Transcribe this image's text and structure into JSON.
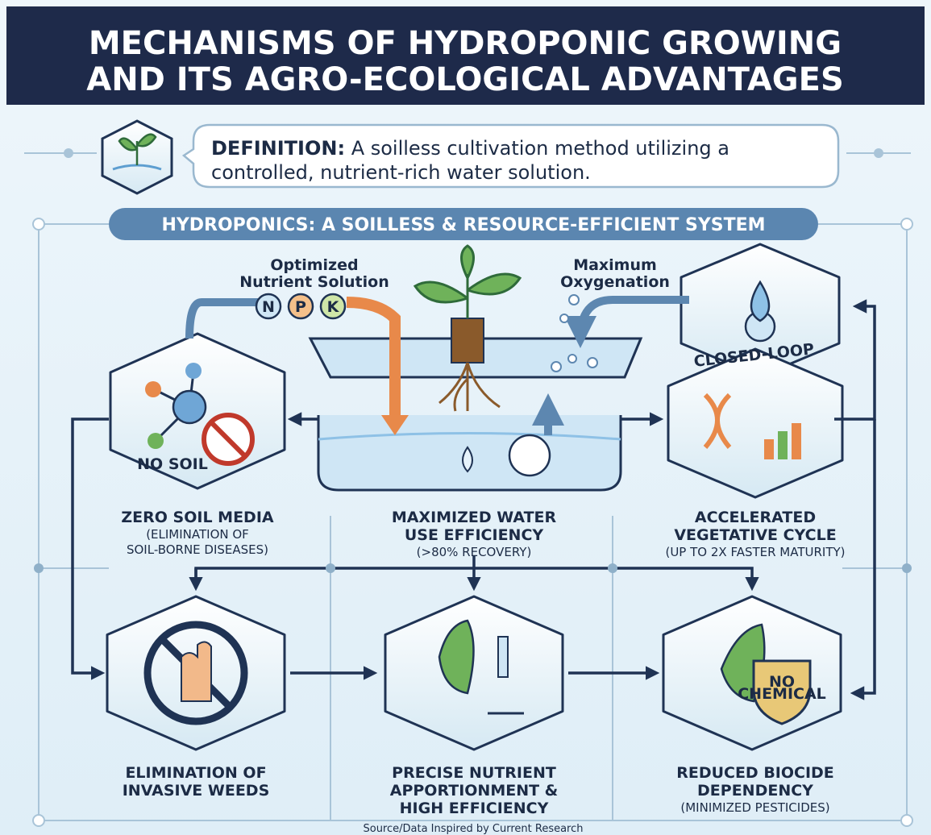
{
  "header": {
    "title_lines": [
      "MECHANISMS OF HYDROPONIC GROWING",
      "AND ITS AGRO-ECOLOGICAL ADVANTAGES"
    ]
  },
  "definition": {
    "label": "DEFINITION:",
    "text_lines": [
      "A soilless cultivation method utilizing a",
      "controlled, nutrient-rich water solution."
    ]
  },
  "banner": "HYDROPONICS: A SOILLESS & RESOURCE-EFFICIENT SYSTEM",
  "process": {
    "nutrient_lines": [
      "Optimized",
      "Nutrient Solution"
    ],
    "nutrients": [
      "N",
      "P",
      "K"
    ],
    "oxygen_lines": [
      "Maximum",
      "Oxygenation"
    ],
    "loop": "CLOSED-LOOP",
    "soil_badge": "NO SOIL",
    "shield_lines": [
      "NO",
      "CHEMICAL"
    ]
  },
  "nodes": [
    {
      "title_lines": [
        "ZERO SOIL MEDIA"
      ],
      "note_lines": [
        "(ELIMINATION OF",
        "SOIL-BORNE DISEASES)"
      ]
    },
    {
      "title_lines": [
        "MAXIMIZED WATER",
        "USE EFFICIENCY"
      ],
      "note_lines": [
        "(>80% RECOVERY)"
      ]
    },
    {
      "title_lines": [
        "ACCELERATED",
        "VEGETATIVE CYCLE"
      ],
      "note_lines": [
        "(UP TO 2X FASTER MATURITY)"
      ]
    },
    {
      "title_lines": [
        "ELIMINATION OF",
        "INVASIVE WEEDS"
      ],
      "note_lines": []
    },
    {
      "title_lines": [
        "PRECISE NUTRIENT",
        "APPORTIONMENT &",
        "HIGH EFFICIENCY"
      ],
      "note_lines": []
    },
    {
      "title_lines": [
        "REDUCED BIOCIDE",
        "DEPENDENCY"
      ],
      "note_lines": [
        "(MINIMIZED PESTICIDES)"
      ]
    }
  ],
  "source": "Source/Data Inspired by Current Research"
}
